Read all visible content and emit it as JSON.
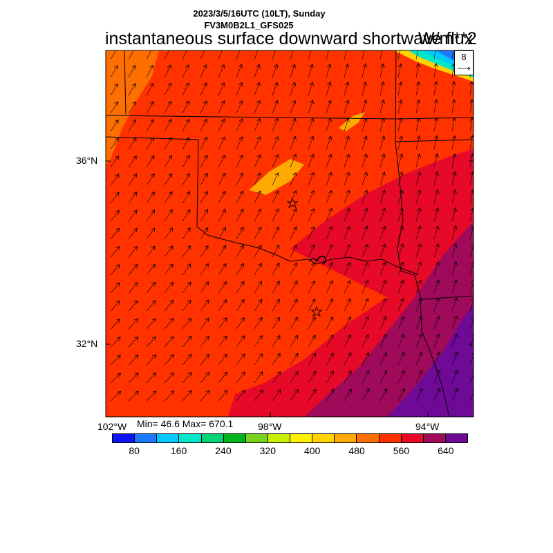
{
  "header": {
    "datetime": "2023/3/5/16UTC (10LT), Sunday",
    "model": "FV3M0B2L1_GFS025",
    "title": "instantaneous surface downward shortwave flux",
    "units": "W/m**2"
  },
  "axes": {
    "lat_labels": [
      "36°N",
      "32°N"
    ],
    "lon_labels": [
      "102°W",
      "98°W",
      "94°W"
    ]
  },
  "stats": {
    "text": "Min= 46.6 Max= 670.1"
  },
  "colorbar": {
    "colors": [
      "#0a14f5",
      "#1e78ff",
      "#00c8ff",
      "#00e6c8",
      "#00d278",
      "#00b41e",
      "#78d21e",
      "#c8f000",
      "#fff000",
      "#ffd200",
      "#ffaa00",
      "#ff6e00",
      "#ff3200",
      "#e60a28",
      "#a00a5a",
      "#6e0a96"
    ],
    "tick_labels": [
      "80",
      "160",
      "240",
      "320",
      "400",
      "480",
      "560",
      "640"
    ]
  },
  "wind_reference": {
    "value": "8"
  },
  "markers": [
    "station-star",
    "station-star"
  ]
}
